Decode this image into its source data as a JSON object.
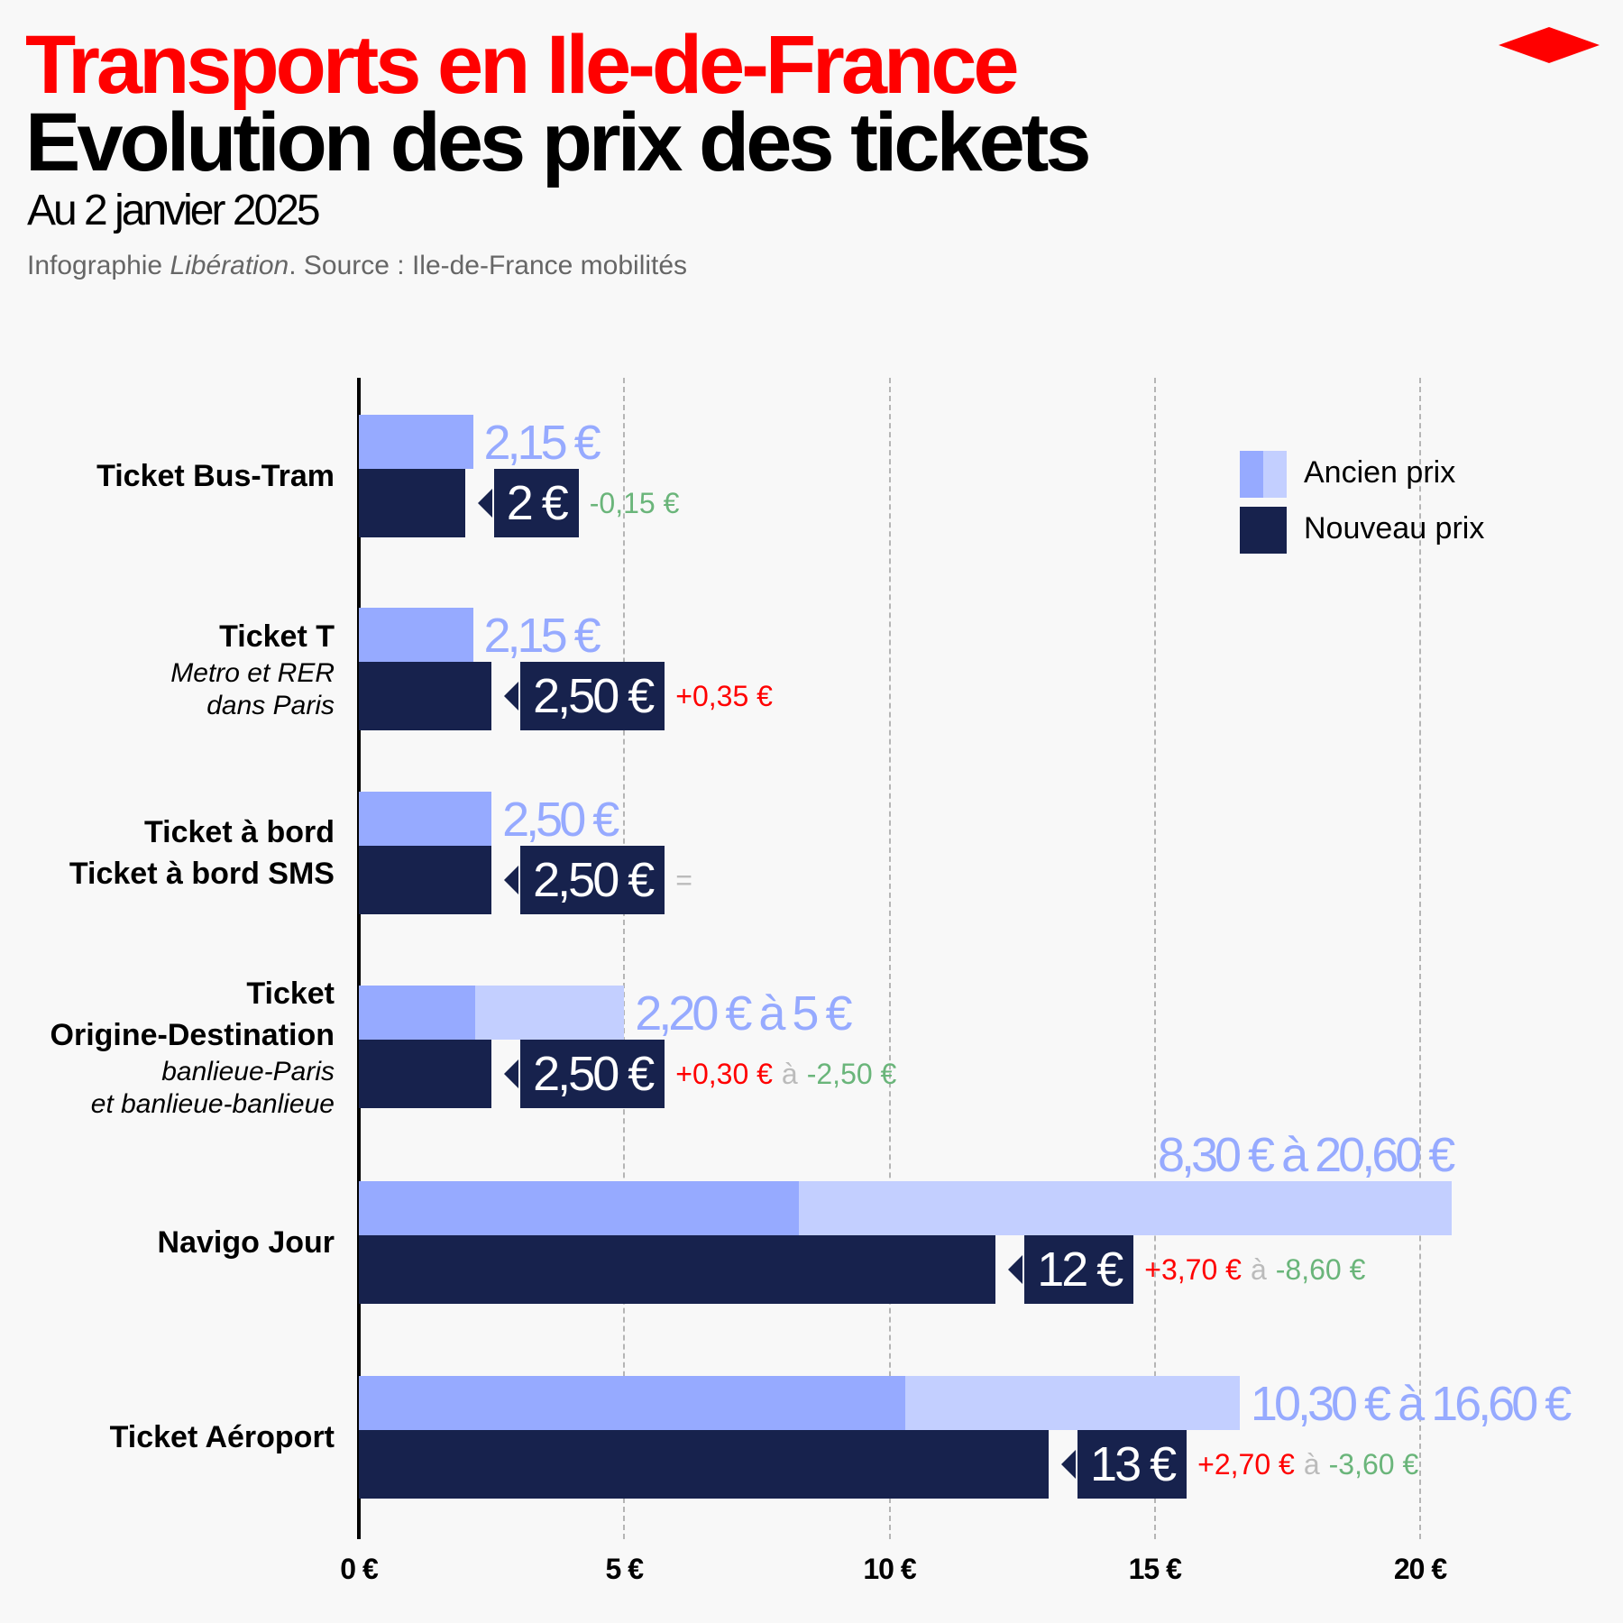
{
  "header": {
    "title": "Transports en Ile-de-France",
    "subtitle": "Evolution des prix des tickets",
    "date": "Au 2 janvier 2025",
    "source_prefix": "Infographie ",
    "source_brand": "Libération",
    "source_suffix": ". Source : Ile-de-France mobilités"
  },
  "legend": {
    "old": "Ancien prix",
    "new": "Nouveau prix"
  },
  "colors": {
    "old": "#96aaff",
    "old_range": "#c3cfff",
    "new": "#17224d",
    "up": "#ff0000",
    "down": "#6ab57a",
    "neutral": "#bbbbbb",
    "brand": "#ff0000"
  },
  "chart_data": {
    "type": "bar",
    "orientation": "horizontal",
    "xlim": [
      0,
      20.6
    ],
    "x_ticks": [
      0,
      5,
      10,
      15,
      20
    ],
    "x_tick_labels": [
      "0 €",
      "5 €",
      "10 €",
      "15 €",
      "20 €"
    ],
    "grid": "vertical dashed",
    "legend_position": "top-right",
    "rows": [
      {
        "labels": [
          {
            "t": "Ticket Bus-Tram",
            "s": "b"
          }
        ],
        "old_min": 2.15,
        "old_max": 2.15,
        "new": 2,
        "old_label": "2,15 €",
        "new_label": "2 €",
        "diff": [
          {
            "t": "-0,15 €",
            "c": "down"
          }
        ]
      },
      {
        "labels": [
          {
            "t": "Ticket T",
            "s": "b"
          },
          {
            "t": "Metro et RER",
            "s": "i"
          },
          {
            "t": "dans Paris",
            "s": "i"
          }
        ],
        "old_min": 2.15,
        "old_max": 2.15,
        "new": 2.5,
        "old_label": "2,15 €",
        "new_label": "2,50 €",
        "diff": [
          {
            "t": "+0,35 €",
            "c": "up"
          }
        ]
      },
      {
        "labels": [
          {
            "t": "Ticket à bord",
            "s": "b"
          },
          {
            "t": "Ticket à bord SMS",
            "s": "b"
          }
        ],
        "old_min": 2.5,
        "old_max": 2.5,
        "new": 2.5,
        "old_label": "2,50 €",
        "new_label": "2,50 €",
        "diff": [
          {
            "t": "=",
            "c": "neutral"
          }
        ]
      },
      {
        "labels": [
          {
            "t": "Ticket",
            "s": "b"
          },
          {
            "t": "Origine-Destination",
            "s": "b"
          },
          {
            "t": "banlieue-Paris",
            "s": "i"
          },
          {
            "t": "et banlieue-banlieue",
            "s": "i"
          }
        ],
        "old_min": 2.2,
        "old_max": 5,
        "new": 2.5,
        "old_label": "2,20 € à 5 €",
        "new_label": "2,50 €",
        "diff": [
          {
            "t": "+0,30 €",
            "c": "up"
          },
          {
            "t": "à",
            "c": "neutral"
          },
          {
            "t": "-2,50 €",
            "c": "down"
          }
        ]
      },
      {
        "labels": [
          {
            "t": "Navigo Jour",
            "s": "b"
          }
        ],
        "old_min": 8.3,
        "old_max": 20.6,
        "new": 12,
        "old_label": "8,30 € à 20,60 €",
        "new_label": "12 €",
        "old_label_above": true,
        "diff": [
          {
            "t": "+3,70 €",
            "c": "up"
          },
          {
            "t": "à",
            "c": "neutral"
          },
          {
            "t": "-8,60 €",
            "c": "down"
          }
        ]
      },
      {
        "labels": [
          {
            "t": "Ticket Aéroport",
            "s": "b"
          }
        ],
        "old_min": 10.3,
        "old_max": 16.6,
        "new": 13,
        "old_label": "10,30 € à 16,60 €",
        "new_label": "13 €",
        "diff": [
          {
            "t": "+2,70 €",
            "c": "up"
          },
          {
            "t": "à",
            "c": "neutral"
          },
          {
            "t": "-3,60 €",
            "c": "down"
          }
        ]
      }
    ]
  }
}
